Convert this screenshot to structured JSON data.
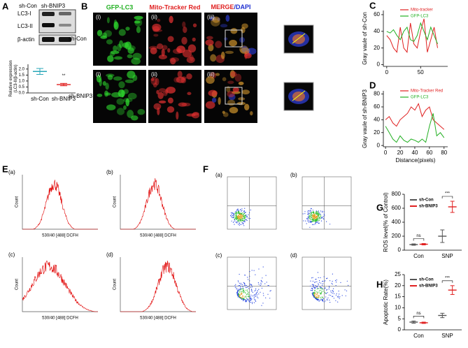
{
  "panel_labels": [
    "A",
    "B",
    "C",
    "D",
    "E",
    "F",
    "G",
    "H"
  ],
  "blot": {
    "lanes": [
      "sh-Con",
      "sh-BNIP3"
    ],
    "bands": [
      "LC3-I",
      "LC3-II",
      "β-actin"
    ]
  },
  "microscopy": {
    "columns": [
      "GFP-LC3",
      "Mito-Tracker Red"
    ],
    "merge_label": [
      "MERGE",
      "/DAPI"
    ],
    "rows": [
      "sh-Con",
      "sh-BNIP3"
    ],
    "sublabels": [
      "(i)",
      "(ii)",
      "(iii)"
    ]
  },
  "flow": {
    "sublabels": [
      "(a)",
      "(b)",
      "(c)",
      "(d)"
    ],
    "x_label": "530/40 [488] DCFH",
    "y_label": "Count"
  },
  "scatter_panels": {
    "sublabels": [
      "(a)",
      "(b)",
      "(c)",
      "(d)"
    ]
  },
  "chart_data": [
    {
      "type": "errorbar",
      "y_label": "Relative expression\n(LC3-II/β-actin)",
      "categories": [
        "sh-Con",
        "sh-BNIP3"
      ],
      "series": [
        {
          "values": [
            1.8,
            0.7
          ],
          "errors": [
            0.25,
            0.1
          ],
          "colors": [
            "#2aa7b8",
            "#e02020"
          ]
        }
      ],
      "ylim": [
        0,
        2.4
      ],
      "yticks": [
        {
          "value": 0,
          "label": "0.0"
        },
        {
          "value": 0.5,
          "label": "0.5"
        },
        {
          "value": 1,
          "label": "1.0"
        },
        {
          "value": 1.5,
          "label": "1.5"
        },
        {
          "value": 2,
          "label": "2.0"
        }
      ],
      "annotations": [
        "**"
      ]
    },
    {
      "type": "line",
      "y_label": "Gray vaule of sh-Con",
      "x": [
        0,
        5,
        10,
        15,
        20,
        25,
        30,
        35,
        40,
        45,
        50,
        55,
        60,
        65,
        70,
        75
      ],
      "series": [
        {
          "name": "Mito-tracker",
          "color": "#e02020",
          "values": [
            35,
            30,
            20,
            15,
            45,
            20,
            15,
            50,
            25,
            20,
            40,
            55,
            15,
            30,
            45,
            20
          ]
        },
        {
          "name": "GFP-LC3",
          "color": "#22b022",
          "values": [
            40,
            38,
            42,
            35,
            30,
            40,
            45,
            30,
            28,
            35,
            50,
            40,
            30,
            45,
            35,
            25
          ]
        }
      ],
      "xlim": [
        -5,
        90
      ],
      "xticks": [
        0,
        50
      ],
      "ylim": [
        -2,
        65
      ],
      "yticks": [
        0,
        20,
        40,
        60
      ]
    },
    {
      "type": "line",
      "y_label": "Gray vaule of sh-BNIP3",
      "x_label": "Distance(pixels)",
      "x": [
        0,
        5,
        10,
        15,
        20,
        25,
        30,
        35,
        40,
        45,
        50,
        55,
        60,
        65,
        70,
        75,
        80
      ],
      "series": [
        {
          "name": "Mito-Tracker Red",
          "color": "#e02020",
          "values": [
            40,
            45,
            35,
            30,
            40,
            45,
            50,
            60,
            55,
            65,
            45,
            55,
            60,
            40,
            35,
            30,
            25
          ]
        },
        {
          "name": "GFP-LC3",
          "color": "#22b022",
          "values": [
            30,
            20,
            10,
            5,
            15,
            8,
            5,
            10,
            8,
            5,
            10,
            5,
            30,
            50,
            15,
            20,
            12
          ]
        }
      ],
      "xlim": [
        -3,
        85
      ],
      "xticks": [
        0,
        20,
        40,
        60,
        80
      ],
      "ylim": [
        -2,
        85
      ],
      "yticks": [
        0,
        20,
        40,
        60,
        80
      ]
    },
    {
      "type": "errorbar",
      "y_label": "ROS level(% of Control)",
      "categories": [
        "Con",
        "SNP"
      ],
      "series": [
        {
          "name": "sh-Con",
          "color": "#555555",
          "values": [
            80,
            200
          ],
          "errors": [
            10,
            90
          ]
        },
        {
          "name": "sh-BNIP3",
          "color": "#e02020",
          "values": [
            85,
            620
          ],
          "errors": [
            10,
            80
          ]
        }
      ],
      "ylim": [
        0,
        800
      ],
      "yticks": [
        0,
        200,
        400,
        600,
        800
      ],
      "annotations": [
        "ns",
        "***"
      ]
    },
    {
      "type": "errorbar",
      "y_label": "Apoptotic Rate(%)",
      "categories": [
        "Con",
        "SNP"
      ],
      "series": [
        {
          "name": "sh-Con",
          "color": "#555555",
          "values": [
            3.5,
            6.5
          ],
          "errors": [
            0.5,
            1
          ]
        },
        {
          "name": "sh-BNIP3",
          "color": "#e02020",
          "values": [
            3.2,
            18
          ],
          "errors": [
            0.3,
            2
          ]
        }
      ],
      "ylim": [
        0,
        25
      ],
      "yticks": [
        0,
        5,
        10,
        15,
        20,
        25
      ],
      "annotations": [
        "ns",
        "***"
      ]
    }
  ]
}
